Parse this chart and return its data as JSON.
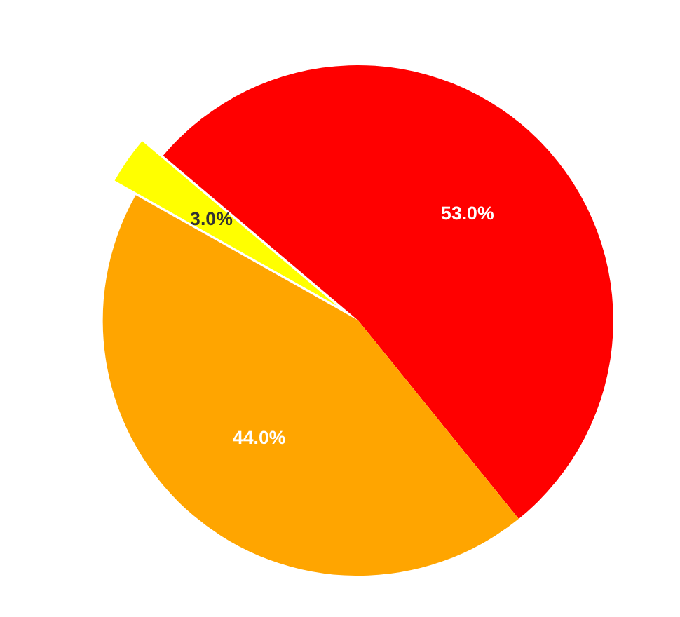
{
  "chart_data": {
    "type": "pie",
    "categories": [
      null,
      null,
      null
    ],
    "values": [
      53.0,
      3.0,
      44.0
    ],
    "colors": [
      "#ff0000",
      "#ffff00",
      "#ffa500"
    ],
    "value_labels": [
      "53.0%",
      "3.0%",
      "44.0%"
    ]
  }
}
